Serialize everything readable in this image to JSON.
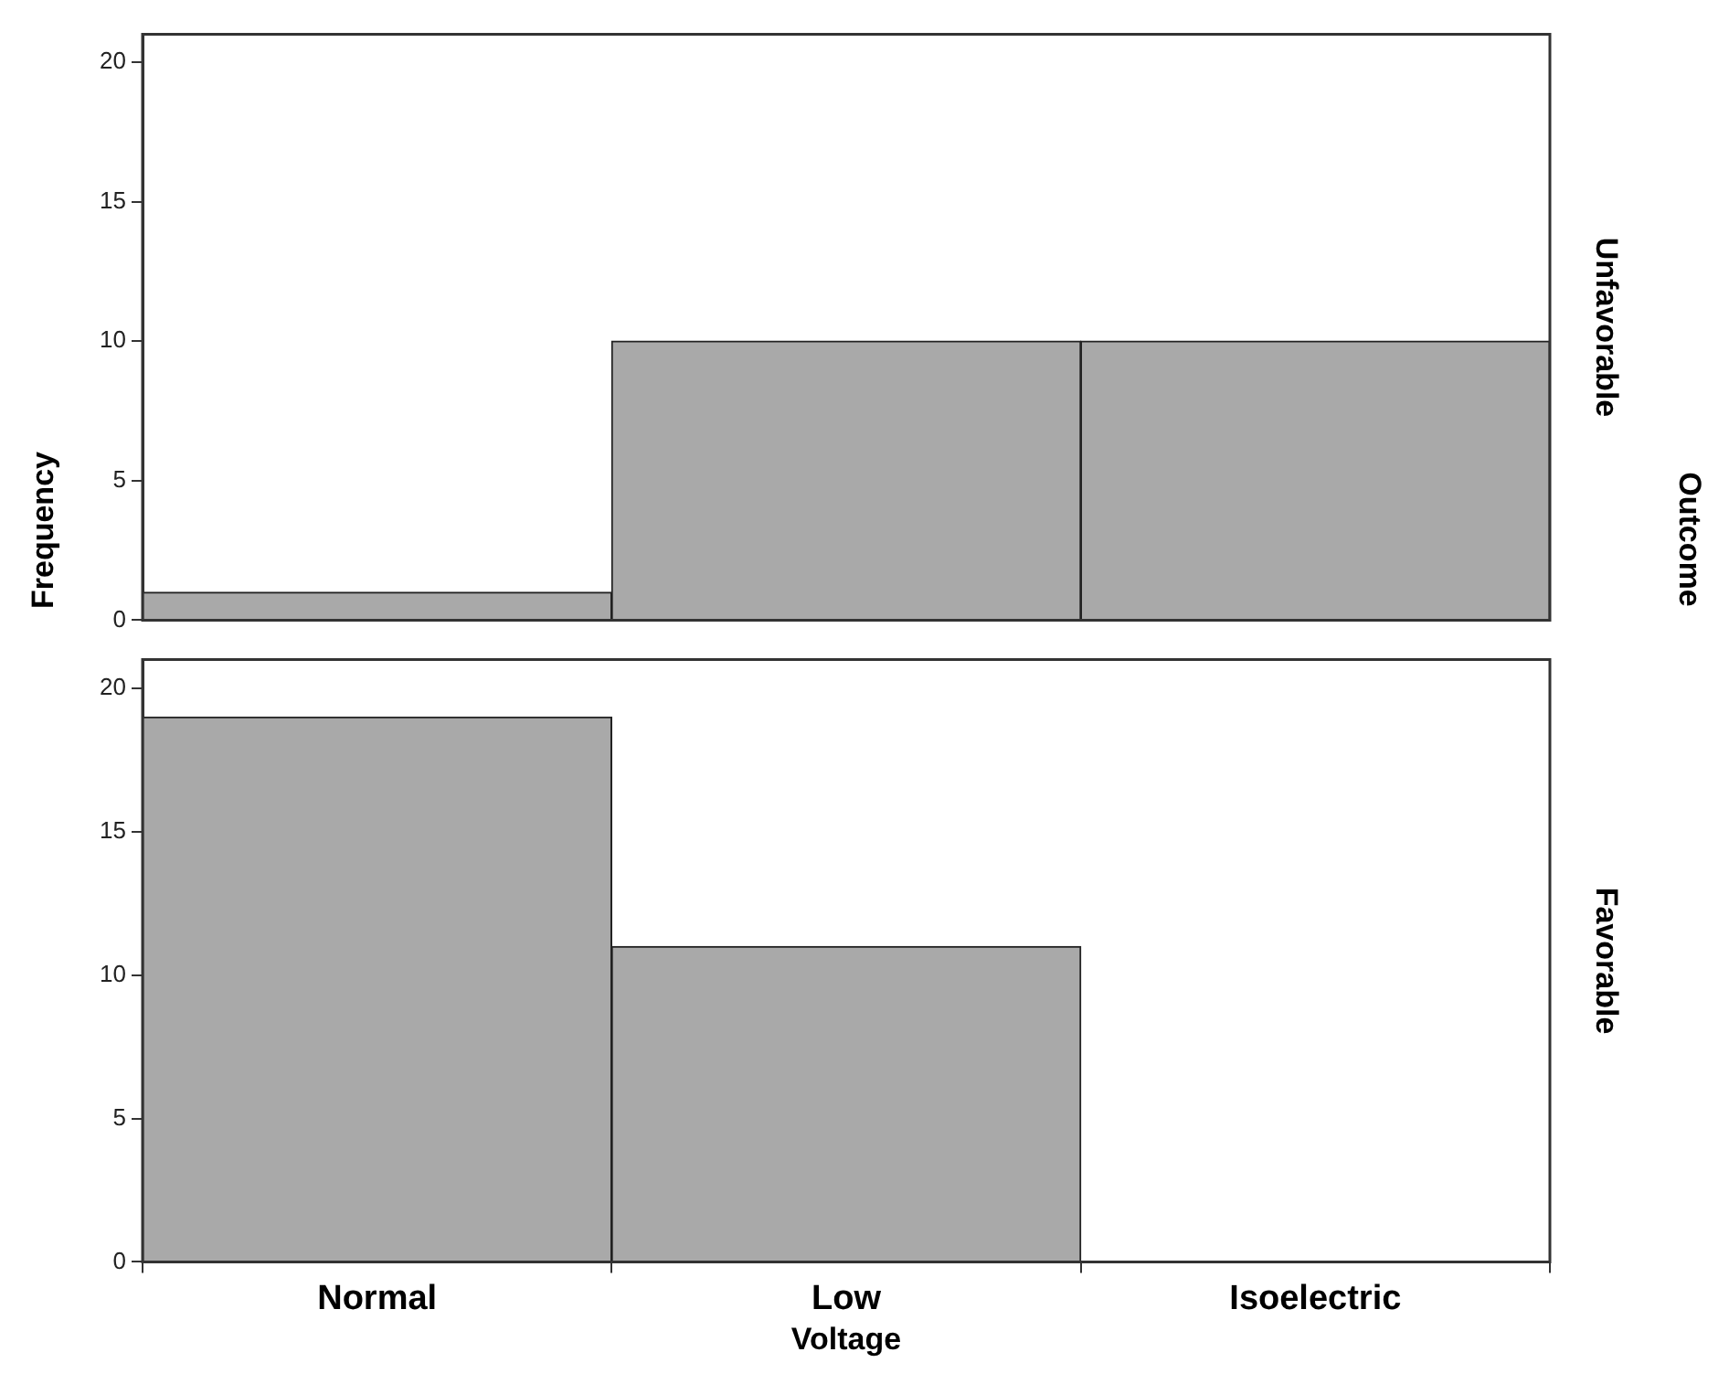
{
  "chart_data": [
    {
      "type": "bar",
      "ylabel": "Frequency",
      "annotations": [
        "Unfavorable",
        "Outcome"
      ],
      "categories": [
        null,
        null,
        null
      ],
      "values": [
        1,
        10,
        10
      ],
      "color": "#a9a9a9",
      "ylim": [
        0,
        21
      ],
      "yticks": [
        0,
        5,
        10,
        15,
        20
      ],
      "tick_labels": "y"
    },
    {
      "type": "bar",
      "xlabel": "Voltage",
      "annotations": [
        "Favorable"
      ],
      "categories": [
        "Normal",
        "Low",
        "Isoelectric"
      ],
      "values": [
        19,
        11,
        0
      ],
      "color": "#a9a9a9",
      "ylim": [
        0,
        21
      ],
      "yticks": [
        0,
        5,
        10,
        15,
        20
      ]
    }
  ]
}
